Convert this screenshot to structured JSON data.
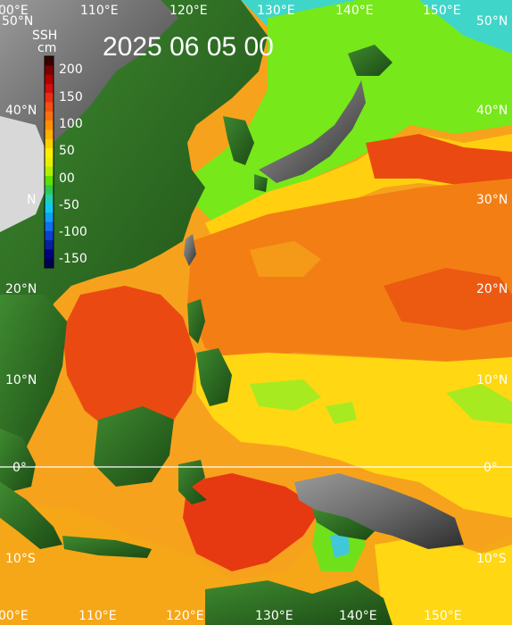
{
  "title": "2025 06 05 00",
  "colorbar": {
    "label_top": "SSH",
    "label_unit": "cm",
    "ticks": [
      "200",
      "150",
      "100",
      "50",
      "00",
      "-50",
      "-100",
      "-150"
    ],
    "colors": [
      "#3a0000",
      "#7a0000",
      "#b00000",
      "#d01010",
      "#e83010",
      "#f05010",
      "#f87010",
      "#ff9000",
      "#ffb000",
      "#ffd000",
      "#ffee00",
      "#e8f000",
      "#b0f000",
      "#60e000",
      "#30c850",
      "#20d0b0",
      "#10c8f0",
      "#10a0f8",
      "#1070f0",
      "#1040d0",
      "#0820a0",
      "#000080",
      "#000050"
    ]
  },
  "lon_labels": [
    "110°E",
    "120°E",
    "130°E",
    "140°E",
    "150°E"
  ],
  "lon_edge_left_top": "00°E",
  "lon_edge_left_bottom": "00°E",
  "lat_labels_left": [
    "50°N",
    "40°N",
    "20°N",
    "10°N",
    "0°",
    "10°S"
  ],
  "lat_labels_right": [
    "50°N",
    "40°N",
    "30°N",
    "20°N",
    "10°N",
    "0°",
    "10°S"
  ],
  "lat_30_left": "N"
}
